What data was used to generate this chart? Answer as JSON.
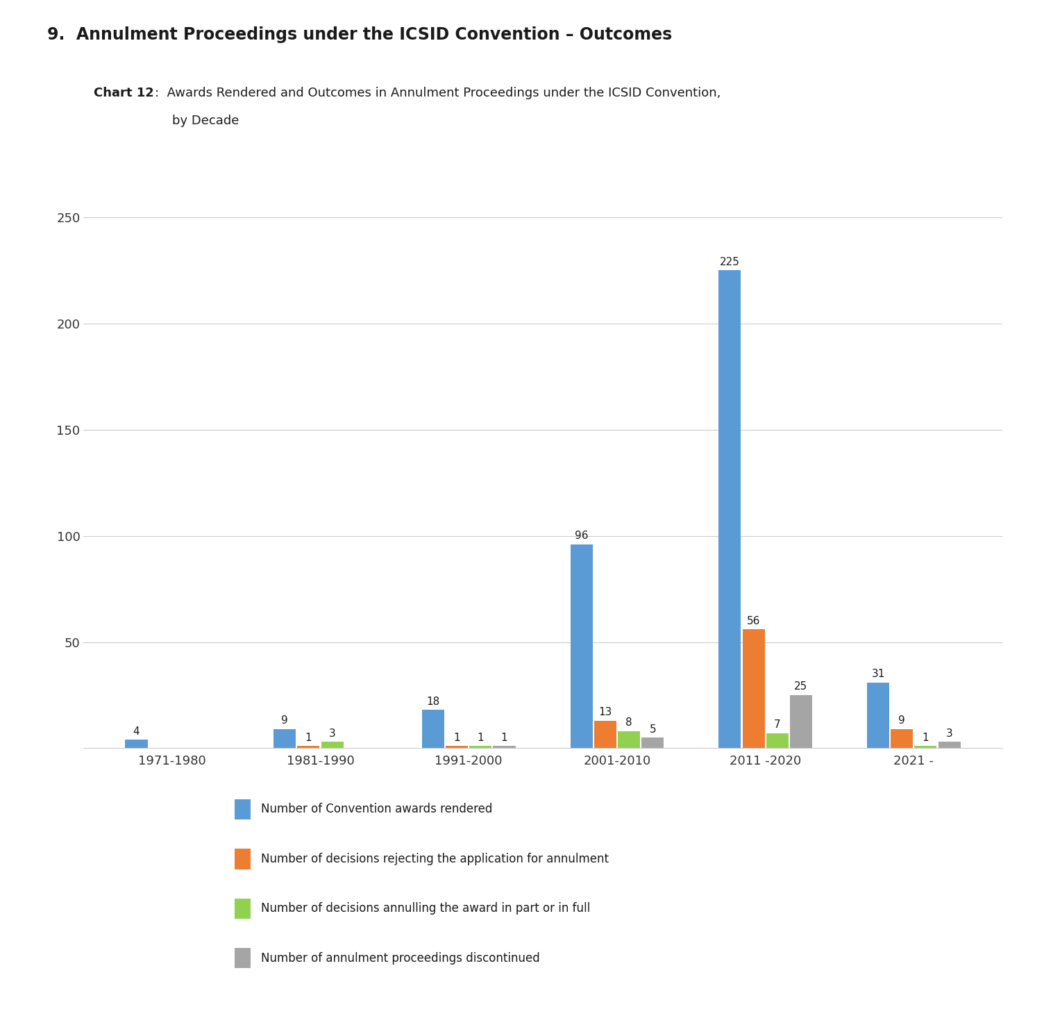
{
  "title_main": "9.  Annulment Proceedings under the ICSID Convention – Outcomes",
  "chart_label_bold": "Chart 12",
  "chart_label_rest": ":  Awards Rendered and Outcomes in Annulment Proceedings under the ICSID Convention,",
  "chart_label_rest2": "by Decade",
  "categories": [
    "1971-1980",
    "1981-1990",
    "1991-2000",
    "2001-2010",
    "2011 -2020",
    "2021 -"
  ],
  "series": {
    "awards": [
      4,
      9,
      18,
      96,
      225,
      31
    ],
    "rejecting": [
      0,
      1,
      1,
      13,
      56,
      9
    ],
    "annulling": [
      0,
      3,
      1,
      8,
      7,
      1
    ],
    "discontinued": [
      0,
      0,
      1,
      5,
      25,
      3
    ]
  },
  "colors": {
    "awards": "#5B9BD5",
    "rejecting": "#ED7D31",
    "annulling": "#92D050",
    "discontinued": "#A5A5A5"
  },
  "legend_labels": [
    "Number of Convention awards rendered",
    "Number of decisions rejecting the application for annulment",
    "Number of decisions annulling the award in part or in full",
    "Number of annulment proceedings discontinued"
  ],
  "ylim": [
    0,
    275
  ],
  "yticks": [
    0,
    50,
    100,
    150,
    200,
    250
  ],
  "background_color": "#ffffff",
  "grid_color": "#CCCCCC",
  "title_fontsize": 17,
  "chart_label_fontsize": 13,
  "axis_fontsize": 13,
  "bar_label_fontsize": 11,
  "legend_fontsize": 12
}
